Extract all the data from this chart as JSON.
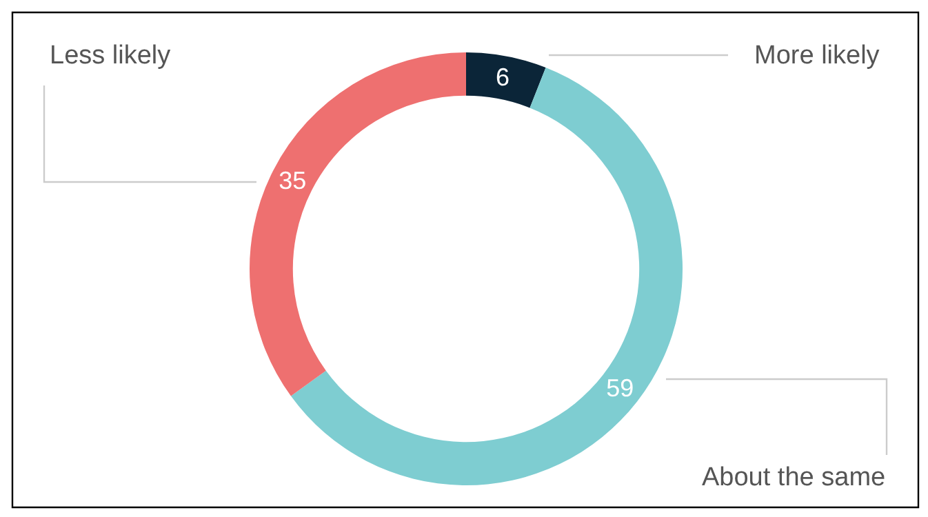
{
  "chart_data": {
    "type": "donut",
    "categories": [
      "More likely",
      "About the same",
      "Less likely"
    ],
    "values": [
      6,
      59,
      35
    ],
    "colors": [
      "#0b2538",
      "#7ecdd1",
      "#ee7070"
    ],
    "data_labels": true
  }
}
